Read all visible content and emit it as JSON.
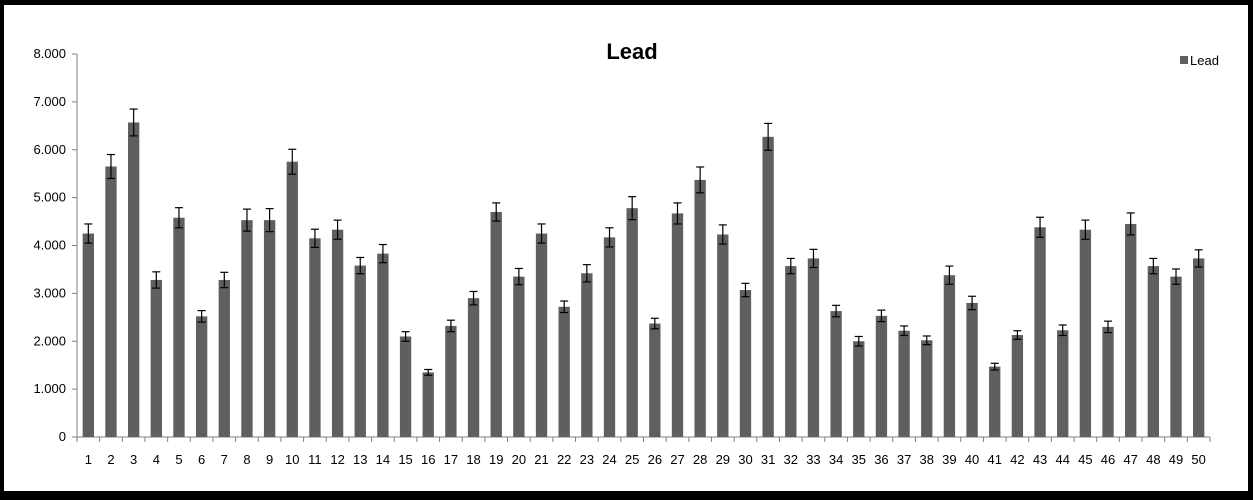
{
  "chart_data": {
    "type": "bar",
    "title": "Lead",
    "xlabel": "",
    "ylabel": "",
    "ylim": [
      0,
      8
    ],
    "yticks": [
      0,
      1,
      2,
      3,
      4,
      5,
      6,
      7,
      8
    ],
    "ytick_labels": [
      "0",
      "1.000",
      "2.000",
      "3.000",
      "4.000",
      "5.000",
      "6.000",
      "7.000",
      "8.000"
    ],
    "categories": [
      "1",
      "2",
      "3",
      "4",
      "5",
      "6",
      "7",
      "8",
      "9",
      "10",
      "11",
      "12",
      "13",
      "14",
      "15",
      "16",
      "17",
      "18",
      "19",
      "20",
      "21",
      "22",
      "23",
      "24",
      "25",
      "26",
      "27",
      "28",
      "29",
      "30",
      "31",
      "32",
      "33",
      "34",
      "35",
      "36",
      "37",
      "38",
      "39",
      "40",
      "41",
      "42",
      "43",
      "44",
      "45",
      "46",
      "47",
      "48",
      "49",
      "50"
    ],
    "series": [
      {
        "name": "Lead",
        "color": "#5f5f5f",
        "values": [
          4.25,
          5.65,
          6.57,
          3.28,
          4.58,
          2.52,
          3.28,
          4.53,
          4.53,
          5.75,
          4.15,
          4.33,
          3.58,
          3.83,
          2.1,
          1.35,
          2.32,
          2.9,
          4.7,
          3.35,
          4.25,
          2.72,
          3.42,
          4.17,
          4.78,
          2.37,
          4.67,
          5.37,
          4.23,
          3.07,
          6.27,
          3.57,
          3.73,
          2.63,
          2.0,
          2.53,
          2.22,
          2.02,
          3.38,
          2.8,
          1.47,
          2.13,
          4.38,
          2.23,
          4.33,
          2.3,
          4.45,
          3.57,
          3.35,
          3.73
        ],
        "errors": [
          0.2,
          0.25,
          0.28,
          0.17,
          0.21,
          0.12,
          0.16,
          0.23,
          0.24,
          0.26,
          0.19,
          0.2,
          0.17,
          0.19,
          0.1,
          0.06,
          0.12,
          0.14,
          0.19,
          0.17,
          0.2,
          0.12,
          0.18,
          0.2,
          0.24,
          0.11,
          0.22,
          0.27,
          0.2,
          0.14,
          0.28,
          0.16,
          0.19,
          0.12,
          0.1,
          0.12,
          0.1,
          0.09,
          0.19,
          0.14,
          0.07,
          0.09,
          0.21,
          0.11,
          0.2,
          0.12,
          0.23,
          0.16,
          0.16,
          0.18
        ]
      }
    ],
    "legend": {
      "position": "top-right",
      "entries": [
        "Lead"
      ]
    },
    "grid": false
  }
}
